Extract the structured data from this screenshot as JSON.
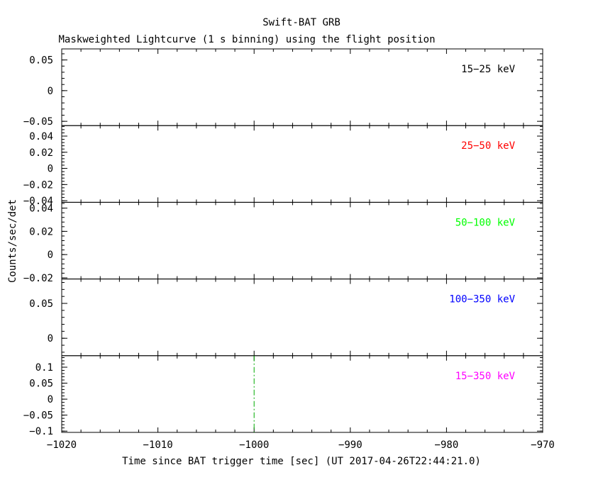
{
  "chart_data": {
    "type": "line",
    "title": "Swift-BAT GRB",
    "subtitle": "Maskweighted Lightcurve (1 s binning) using the flight position",
    "xlabel": "Time since BAT trigger time [sec] (UT 2017-04-26T22:44:21.0)",
    "ylabel": "Counts/sec/det",
    "xlim": [
      -1020,
      -970
    ],
    "x_ticks": [
      -1020,
      -1010,
      -1000,
      -990,
      -980,
      -970
    ],
    "x_tick_labels": [
      "−1020",
      "−1010",
      "−1000",
      "−990",
      "−980",
      "−970"
    ],
    "trigger_marker": {
      "x": -1000,
      "color": "#00aa00",
      "panel_index": 4
    },
    "panels": [
      {
        "band": "15−25 keV",
        "color": "#000000",
        "ylim": [
          -0.057,
          0.068
        ],
        "y_ticks": [
          0.05,
          0,
          -0.05
        ],
        "y_tick_labels": [
          "0.05",
          "0",
          "−0.05"
        ],
        "series": []
      },
      {
        "band": "25−50 keV",
        "color": "#ff0000",
        "ylim": [
          -0.042,
          0.053
        ],
        "y_ticks": [
          0.04,
          0.02,
          0,
          -0.02,
          -0.04
        ],
        "y_tick_labels": [
          "0.04",
          "0.02",
          "0",
          "−0.02",
          "−0.04"
        ],
        "series": []
      },
      {
        "band": "50−100 keV",
        "color": "#00ff00",
        "ylim": [
          -0.021,
          0.045
        ],
        "y_ticks": [
          0.04,
          0.02,
          0,
          -0.02
        ],
        "y_tick_labels": [
          "0.04",
          "0.02",
          "0",
          "−0.02"
        ],
        "series": []
      },
      {
        "band": "100−350 keV",
        "color": "#0000ff",
        "ylim": [
          -0.025,
          0.085
        ],
        "y_ticks": [
          0.05,
          0
        ],
        "y_tick_labels": [
          "0.05",
          "0"
        ],
        "series": []
      },
      {
        "band": "15−350 keV",
        "color": "#ff00ff",
        "ylim": [
          -0.104,
          0.136
        ],
        "y_ticks": [
          0.1,
          0.05,
          0,
          -0.05,
          -0.1
        ],
        "y_tick_labels": [
          "0.1",
          "0.05",
          "0",
          "−0.05",
          "−0.1"
        ],
        "series": []
      }
    ]
  }
}
